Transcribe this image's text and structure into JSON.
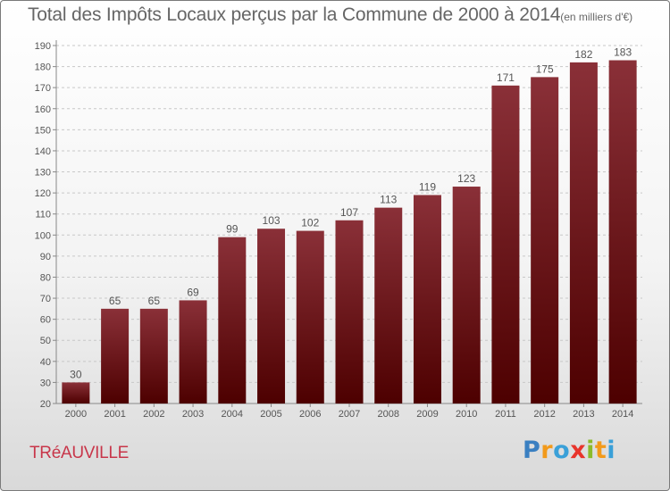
{
  "title": "Total des Impôts Locaux perçus par la Commune de 2000 à 2014",
  "title_unit": "(en milliers d'€)",
  "commune": "TRéAUVILLE",
  "logo": {
    "text": "Proxiti",
    "letters": [
      {
        "char": "P",
        "color": "#3a7fc1"
      },
      {
        "char": "r",
        "color": "#f29a1b"
      },
      {
        "char": "o",
        "color": "#3aa0d8"
      },
      {
        "char": "x",
        "color": "#e8342b"
      },
      {
        "char": "i",
        "color": "#8bbb2b"
      },
      {
        "char": "t",
        "color": "#f29a1b"
      },
      {
        "char": "i",
        "color": "#3aa0d8"
      }
    ]
  },
  "chart_data": {
    "type": "bar",
    "title": "Total des Impôts Locaux perçus par la Commune de 2000 à 2014",
    "unit": "(en milliers d'€)",
    "categories": [
      "2000",
      "2001",
      "2002",
      "2003",
      "2004",
      "2005",
      "2006",
      "2007",
      "2008",
      "2009",
      "2010",
      "2011",
      "2012",
      "2013",
      "2014"
    ],
    "values": [
      30,
      65,
      65,
      69,
      99,
      103,
      102,
      107,
      113,
      119,
      123,
      171,
      175,
      182,
      183
    ],
    "ylim": [
      20,
      190
    ],
    "yticks": [
      20,
      30,
      40,
      50,
      60,
      70,
      80,
      90,
      100,
      110,
      120,
      130,
      140,
      150,
      160,
      170,
      180,
      190
    ],
    "grid": true,
    "bar_color_top": "#8a3038",
    "bar_color_bottom": "#4d0000"
  }
}
